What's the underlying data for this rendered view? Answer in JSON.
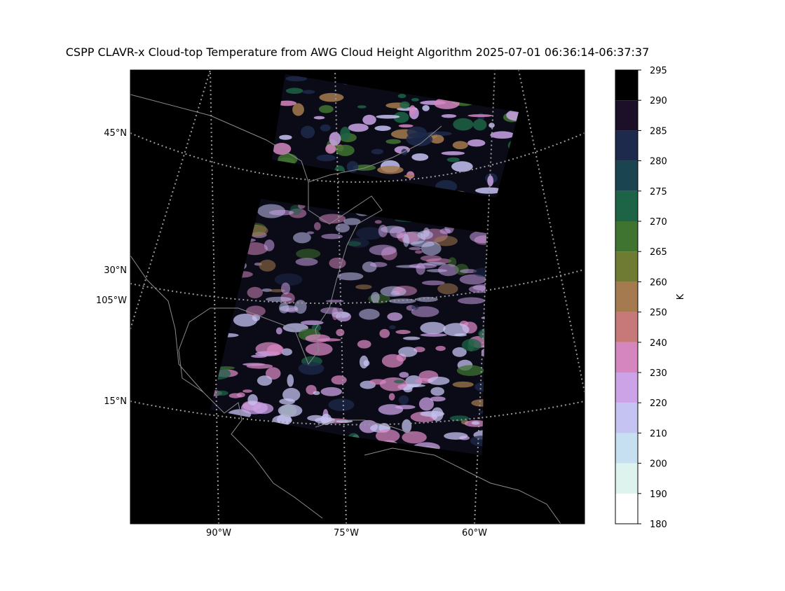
{
  "map": {
    "title": "CSPP CLAVR-x Cloud-top Temperature from AWG Cloud Height Algorithm 2025-07-01 06:36:14-06:37:37",
    "lat_labels": [
      "45°N",
      "30°N",
      "105°W",
      "15°N"
    ],
    "lon_labels": [
      "90°W",
      "75°W",
      "60°W"
    ]
  },
  "colorbar": {
    "label": "K",
    "levels": [
      180,
      190,
      200,
      210,
      220,
      230,
      240,
      250,
      260,
      265,
      270,
      275,
      280,
      285,
      290,
      295
    ],
    "colors": [
      "#ffffff",
      "#def2ee",
      "#c6e0f2",
      "#c5c3f2",
      "#cba3e6",
      "#d586bf",
      "#c77979",
      "#a47a4e",
      "#6f7a33",
      "#3f7330",
      "#1d6345",
      "#1a4550",
      "#1d2a4b",
      "#1c1028",
      "#000000"
    ]
  }
}
